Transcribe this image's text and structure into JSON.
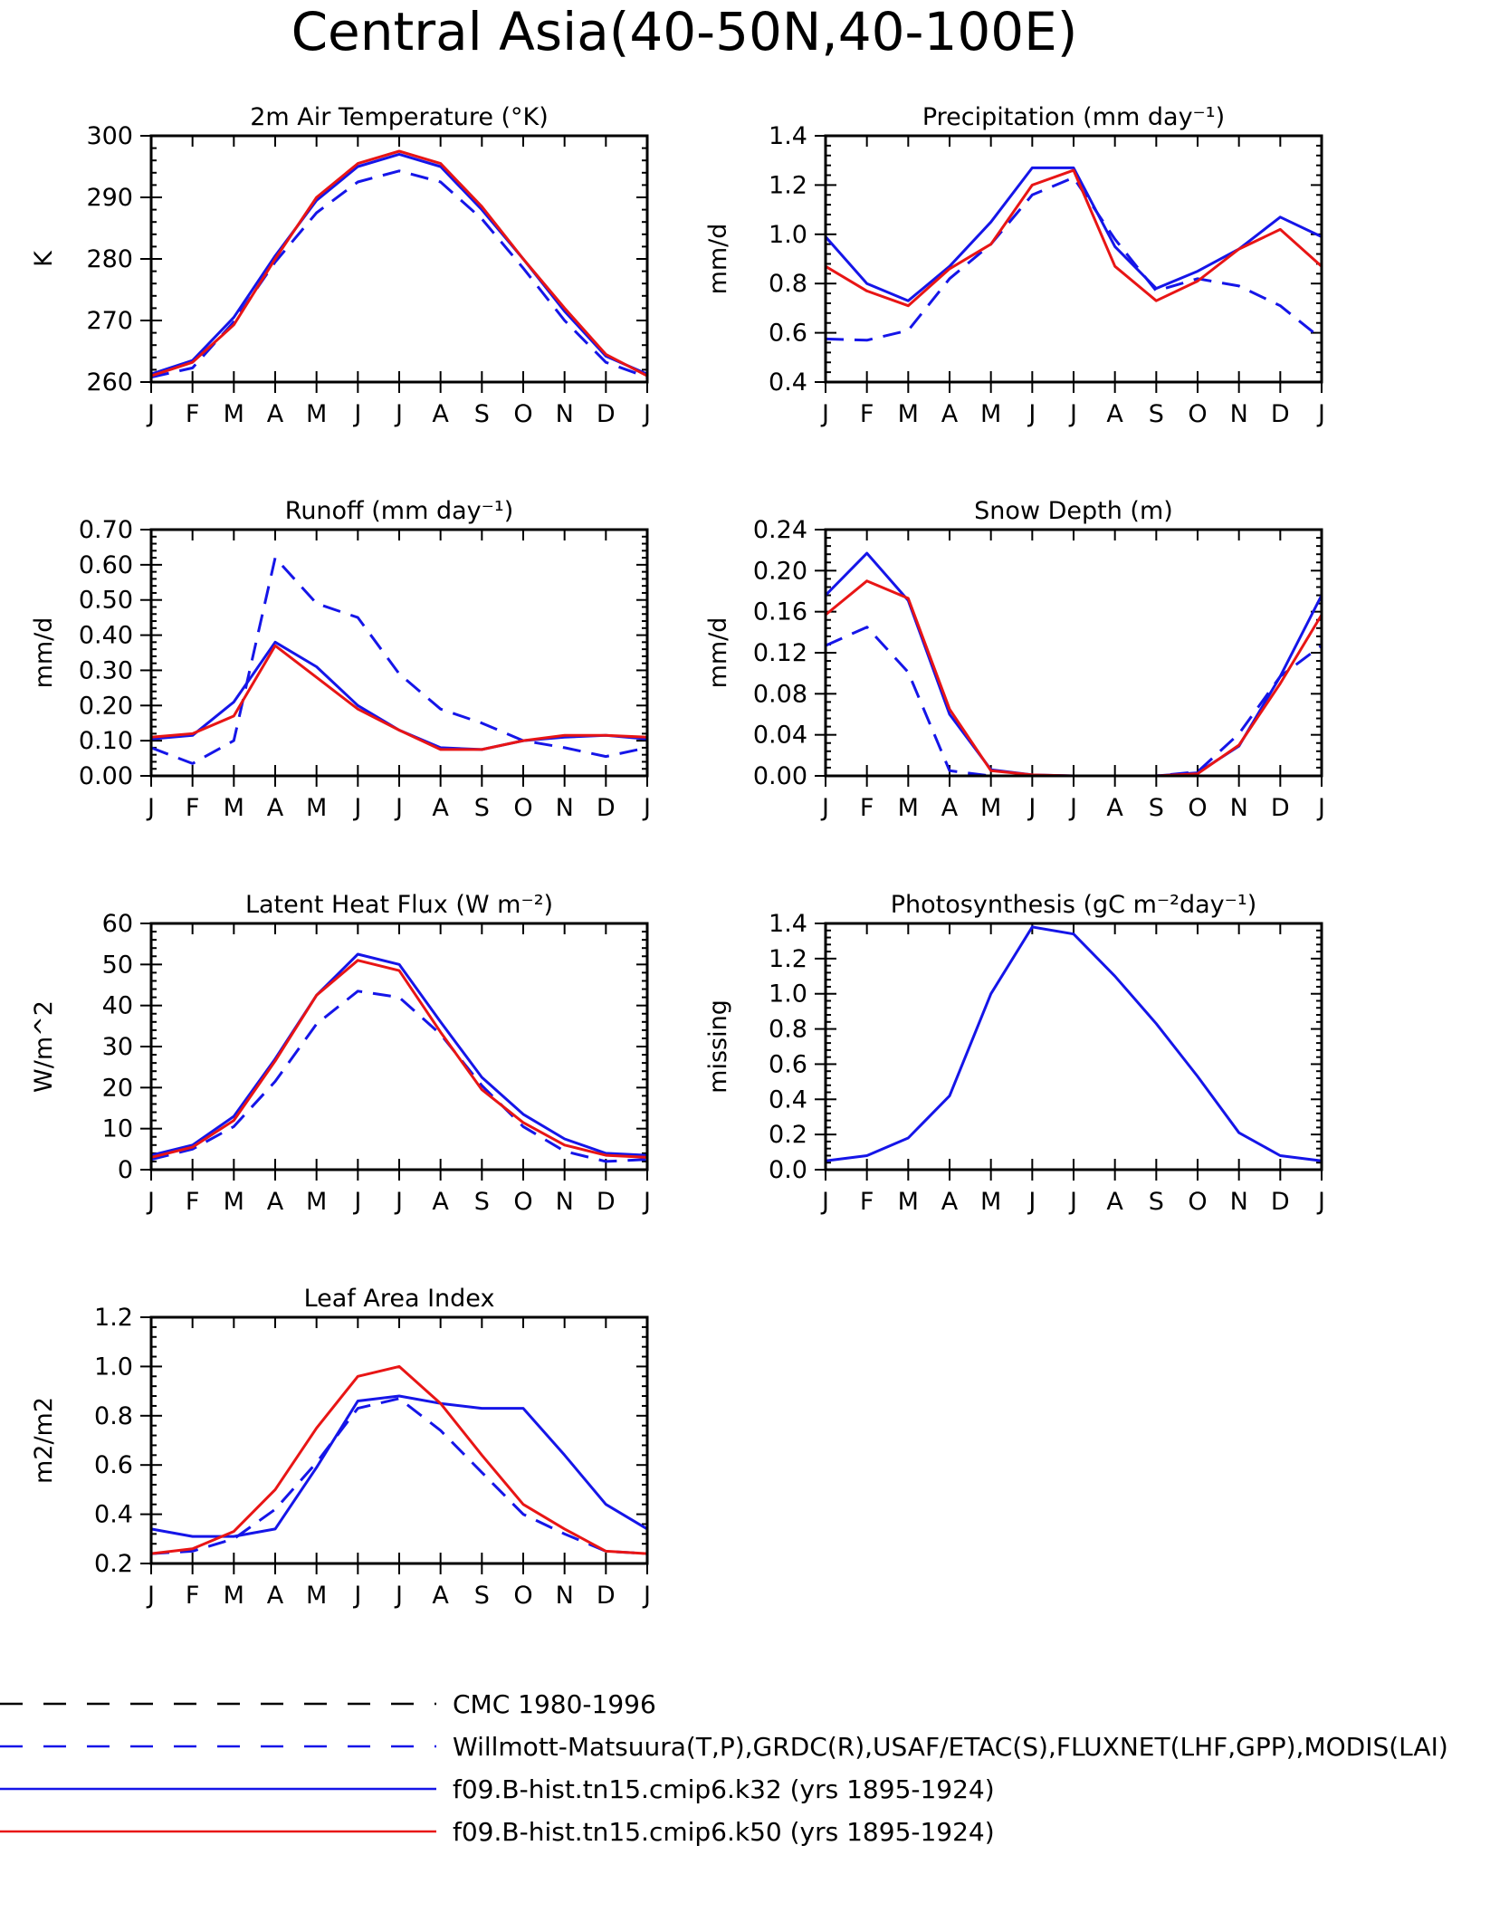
{
  "title": "Central Asia(40-50N,40-100E)",
  "months": [
    "J",
    "F",
    "M",
    "A",
    "M",
    "J",
    "J",
    "A",
    "S",
    "O",
    "N",
    "D",
    "J"
  ],
  "colors": {
    "blue": "#1515e8",
    "red": "#e81515",
    "black": "#000000"
  },
  "chart_data": [
    {
      "type": "line",
      "title": "2m Air Temperature (°K)",
      "ylabel": "K",
      "ylim": [
        260,
        300
      ],
      "yticks": [
        "260",
        "270",
        "280",
        "290",
        "300"
      ],
      "series": [
        {
          "name": "Willmott-Matsuura(T,P),GRDC(R),USAF/ETAC(S),FLUXNET(LHF,GPP),MODIS(LAI)",
          "color": "blue",
          "dash": true,
          "values": [
            260.8,
            262.3,
            269.8,
            279.5,
            287.5,
            292.5,
            294.3,
            292.5,
            286.5,
            278.5,
            270.0,
            263.2,
            260.8
          ]
        },
        {
          "name": "f09.B-hist.tn15.cmip6.k32 (yrs 1895-1924)",
          "color": "blue",
          "dash": false,
          "values": [
            261.3,
            263.5,
            270.5,
            280.5,
            289.5,
            295.0,
            297.0,
            295.0,
            288.0,
            280.0,
            271.5,
            264.2,
            261.3
          ]
        },
        {
          "name": "f09.B-hist.tn15.cmip6.k50 (yrs 1895-1924)",
          "color": "red",
          "dash": false,
          "values": [
            261.0,
            263.2,
            269.3,
            280.0,
            290.0,
            295.5,
            297.5,
            295.5,
            288.5,
            280.0,
            272.0,
            264.5,
            261.0
          ]
        }
      ]
    },
    {
      "type": "line",
      "title": "Precipitation (mm day⁻¹)",
      "ylabel": "mm/d",
      "ylim": [
        0.4,
        1.4
      ],
      "yticks": [
        "0.4",
        "0.6",
        "0.8",
        "1.0",
        "1.2",
        "1.4"
      ],
      "series": [
        {
          "name": "Willmott-Matsuura(T,P),GRDC(R),USAF/ETAC(S),FLUXNET(LHF,GPP),MODIS(LAI)",
          "color": "blue",
          "dash": true,
          "values": [
            0.575,
            0.57,
            0.61,
            0.82,
            0.96,
            1.16,
            1.23,
            0.98,
            0.77,
            0.82,
            0.79,
            0.71,
            0.575
          ]
        },
        {
          "name": "f09.B-hist.tn15.cmip6.k32 (yrs 1895-1924)",
          "color": "blue",
          "dash": false,
          "values": [
            0.99,
            0.8,
            0.73,
            0.87,
            1.05,
            1.27,
            1.27,
            0.95,
            0.78,
            0.85,
            0.94,
            1.07,
            0.99
          ]
        },
        {
          "name": "f09.B-hist.tn15.cmip6.k50 (yrs 1895-1924)",
          "color": "red",
          "dash": false,
          "values": [
            0.87,
            0.77,
            0.71,
            0.86,
            0.96,
            1.2,
            1.26,
            0.87,
            0.73,
            0.81,
            0.94,
            1.02,
            0.87
          ]
        }
      ]
    },
    {
      "type": "line",
      "title": "Runoff (mm day⁻¹)",
      "ylabel": "mm/d",
      "ylim": [
        0,
        0.7
      ],
      "yticks": [
        "0.00",
        "0.10",
        "0.20",
        "0.30",
        "0.40",
        "0.50",
        "0.60",
        "0.70"
      ],
      "series": [
        {
          "name": "Willmott-Matsuura(T,P),GRDC(R),USAF/ETAC(S),FLUXNET(LHF,GPP),MODIS(LAI)",
          "color": "blue",
          "dash": true,
          "values": [
            0.08,
            0.035,
            0.1,
            0.62,
            0.49,
            0.45,
            0.29,
            0.19,
            0.15,
            0.1,
            0.08,
            0.055,
            0.08
          ]
        },
        {
          "name": "f09.B-hist.tn15.cmip6.k32 (yrs 1895-1924)",
          "color": "blue",
          "dash": false,
          "values": [
            0.105,
            0.115,
            0.21,
            0.38,
            0.31,
            0.2,
            0.13,
            0.08,
            0.075,
            0.1,
            0.11,
            0.115,
            0.105
          ]
        },
        {
          "name": "f09.B-hist.tn15.cmip6.k50 (yrs 1895-1924)",
          "color": "red",
          "dash": false,
          "values": [
            0.11,
            0.12,
            0.17,
            0.37,
            0.28,
            0.19,
            0.13,
            0.075,
            0.075,
            0.1,
            0.115,
            0.115,
            0.11
          ]
        }
      ]
    },
    {
      "type": "line",
      "title": "Snow Depth (m)",
      "ylabel": "mm/d",
      "ylim": [
        0,
        0.24
      ],
      "yticks": [
        "0.00",
        "0.04",
        "0.08",
        "0.12",
        "0.16",
        "0.20",
        "0.24"
      ],
      "series": [
        {
          "name": "CMC 1980-1996",
          "color": "black",
          "dash": true,
          "values": [
            0,
            0,
            0,
            0,
            0,
            0,
            0,
            0,
            0,
            0,
            0,
            0,
            0
          ]
        },
        {
          "name": "Willmott-Matsuura(T,P),GRDC(R),USAF/ETAC(S),FLUXNET(LHF,GPP),MODIS(LAI)",
          "color": "blue",
          "dash": true,
          "values": [
            0.127,
            0.145,
            0.101,
            0.005,
            0.0,
            0.0,
            0.0,
            0.0,
            0.0,
            0.004,
            0.041,
            0.097,
            0.127
          ]
        },
        {
          "name": "f09.B-hist.tn15.cmip6.k32 (yrs 1895-1924)",
          "color": "blue",
          "dash": false,
          "values": [
            0.176,
            0.217,
            0.171,
            0.06,
            0.006,
            0.001,
            0.0,
            0.0,
            0.0,
            0.003,
            0.029,
            0.097,
            0.176
          ]
        },
        {
          "name": "f09.B-hist.tn15.cmip6.k50 (yrs 1895-1924)",
          "color": "red",
          "dash": false,
          "values": [
            0.157,
            0.19,
            0.173,
            0.065,
            0.005,
            0.001,
            0.0,
            0.0,
            0.0,
            0.002,
            0.03,
            0.09,
            0.157
          ]
        }
      ]
    },
    {
      "type": "line",
      "title": "Latent Heat Flux (W m⁻²)",
      "ylabel": "W/m^2",
      "ylim": [
        0,
        60
      ],
      "yticks": [
        "0",
        "10",
        "20",
        "30",
        "40",
        "50",
        "60"
      ],
      "series": [
        {
          "name": "Willmott-Matsuura(T,P),GRDC(R),USAF/ETAC(S),FLUXNET(LHF,GPP),MODIS(LAI)",
          "color": "blue",
          "dash": true,
          "values": [
            2.5,
            5.0,
            10.5,
            21.5,
            35.5,
            43.5,
            42.0,
            33.0,
            20.5,
            10.5,
            4.5,
            2.0,
            2.5
          ]
        },
        {
          "name": "f09.B-hist.tn15.cmip6.k32 (yrs 1895-1924)",
          "color": "blue",
          "dash": false,
          "values": [
            3.5,
            6.0,
            13.0,
            27.0,
            42.5,
            52.5,
            50.0,
            36.0,
            22.5,
            13.5,
            7.5,
            4.0,
            3.5
          ]
        },
        {
          "name": "f09.B-hist.tn15.cmip6.k50 (yrs 1895-1924)",
          "color": "red",
          "dash": false,
          "values": [
            3.0,
            5.5,
            12.0,
            26.5,
            42.5,
            51.0,
            48.5,
            33.5,
            19.5,
            11.5,
            6.0,
            3.5,
            3.0
          ]
        }
      ]
    },
    {
      "type": "line",
      "title": "Photosynthesis (gC m⁻²day⁻¹)",
      "ylabel": "missing",
      "ylim": [
        0,
        1.4
      ],
      "yticks": [
        "0.0",
        "0.2",
        "0.4",
        "0.6",
        "0.8",
        "1.0",
        "1.2",
        "1.4"
      ],
      "series": [
        {
          "name": "f09.B-hist.tn15.cmip6.k32 (yrs 1895-1924)",
          "color": "blue",
          "dash": false,
          "values": [
            0.05,
            0.08,
            0.18,
            0.42,
            1.0,
            1.38,
            1.34,
            1.1,
            0.83,
            0.53,
            0.21,
            0.08,
            0.05
          ]
        }
      ]
    },
    {
      "type": "line",
      "title": "Leaf Area Index",
      "ylabel": "m2/m2",
      "ylim": [
        0.2,
        1.2
      ],
      "yticks": [
        "0.2",
        "0.4",
        "0.6",
        "0.8",
        "1.0",
        "1.2"
      ],
      "series": [
        {
          "name": "Willmott-Matsuura(T,P),GRDC(R),USAF/ETAC(S),FLUXNET(LHF,GPP),MODIS(LAI)",
          "color": "blue",
          "dash": true,
          "values": [
            0.24,
            0.25,
            0.3,
            0.42,
            0.61,
            0.83,
            0.87,
            0.74,
            0.57,
            0.4,
            0.32,
            0.25,
            0.24
          ]
        },
        {
          "name": "f09.B-hist.tn15.cmip6.k32 (yrs 1895-1924)",
          "color": "blue",
          "dash": false,
          "values": [
            0.34,
            0.31,
            0.31,
            0.34,
            0.59,
            0.86,
            0.88,
            0.85,
            0.83,
            0.83,
            0.64,
            0.44,
            0.34
          ]
        },
        {
          "name": "f09.B-hist.tn15.cmip6.k50 (yrs 1895-1924)",
          "color": "red",
          "dash": false,
          "values": [
            0.24,
            0.26,
            0.33,
            0.5,
            0.75,
            0.96,
            1.0,
            0.85,
            0.64,
            0.44,
            0.34,
            0.25,
            0.24
          ]
        }
      ]
    }
  ],
  "legend": [
    {
      "label": "CMC 1980-1996",
      "color": "black",
      "dash": true
    },
    {
      "label": "Willmott-Matsuura(T,P),GRDC(R),USAF/ETAC(S),FLUXNET(LHF,GPP),MODIS(LAI)",
      "color": "blue",
      "dash": true
    },
    {
      "label": "f09.B-hist.tn15.cmip6.k32 (yrs 1895-1924)",
      "color": "blue",
      "dash": false
    },
    {
      "label": "f09.B-hist.tn15.cmip6.k50 (yrs 1895-1924)",
      "color": "red",
      "dash": false
    }
  ]
}
